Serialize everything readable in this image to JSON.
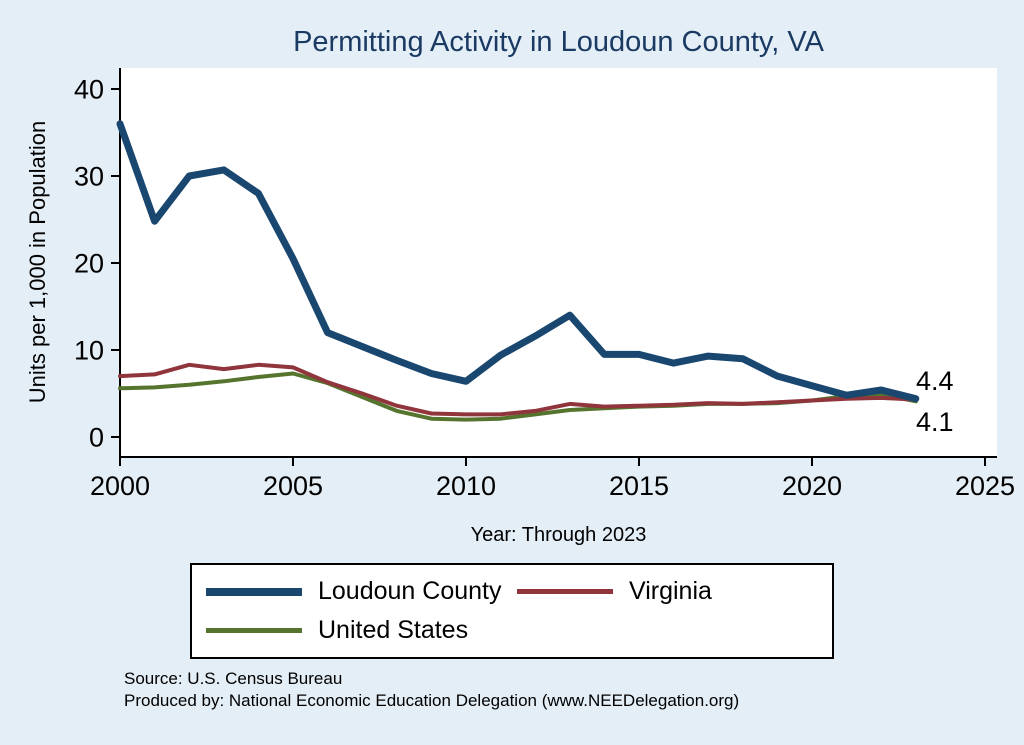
{
  "chart_data": {
    "type": "line",
    "title": "Permitting Activity in Loudoun County, VA",
    "xlabel": "Year: Through 2023",
    "ylabel": "Units per 1,000 in Population",
    "x": [
      2000,
      2001,
      2002,
      2003,
      2004,
      2005,
      2006,
      2007,
      2008,
      2009,
      2010,
      2011,
      2012,
      2013,
      2014,
      2015,
      2016,
      2017,
      2018,
      2019,
      2020,
      2021,
      2022,
      2023
    ],
    "xlim": [
      2000,
      2025
    ],
    "ylim": [
      0,
      40
    ],
    "xticks": [
      2000,
      2005,
      2010,
      2015,
      2020,
      2025
    ],
    "yticks": [
      0,
      10,
      20,
      30,
      40
    ],
    "grid": false,
    "legend_position": "bottom",
    "series": [
      {
        "name": "Loudoun County",
        "color": "#1a476f",
        "width": 7,
        "values": [
          36,
          24.8,
          30,
          30.7,
          28,
          20.5,
          12,
          10.4,
          8.8,
          7.3,
          6.4,
          9.4,
          11.6,
          14,
          9.5,
          9.5,
          8.5,
          9.3,
          9,
          7,
          5.9,
          4.8,
          5.4,
          4.4
        ]
      },
      {
        "name": "Virginia",
        "color": "#90353b",
        "width": 4,
        "values": [
          7,
          7.2,
          8.3,
          7.8,
          8.3,
          8,
          6.3,
          5,
          3.6,
          2.7,
          2.6,
          2.6,
          3,
          3.8,
          3.5,
          3.6,
          3.7,
          3.9,
          3.8,
          4,
          4.2,
          4.4,
          4.5,
          4.3
        ]
      },
      {
        "name": "United States",
        "color": "#55752f",
        "width": 4,
        "values": [
          5.6,
          5.7,
          6,
          6.4,
          6.9,
          7.3,
          6.2,
          4.6,
          3,
          2.1,
          2,
          2.1,
          2.6,
          3.1,
          3.3,
          3.5,
          3.6,
          3.8,
          3.8,
          3.9,
          4.2,
          4.7,
          4.9,
          4.1
        ]
      }
    ],
    "end_labels": {
      "top": "4.4",
      "bottom": "4.1"
    }
  },
  "footer": {
    "source": "Source: U.S. Census Bureau",
    "produced_by": "Produced by: National Economic Education Delegation (www.NEEDelegation.org)"
  },
  "colors": {
    "background": "#e4eef6",
    "plot_background": "#ffffff",
    "axis": "#000000",
    "title": "#1a3a64"
  }
}
